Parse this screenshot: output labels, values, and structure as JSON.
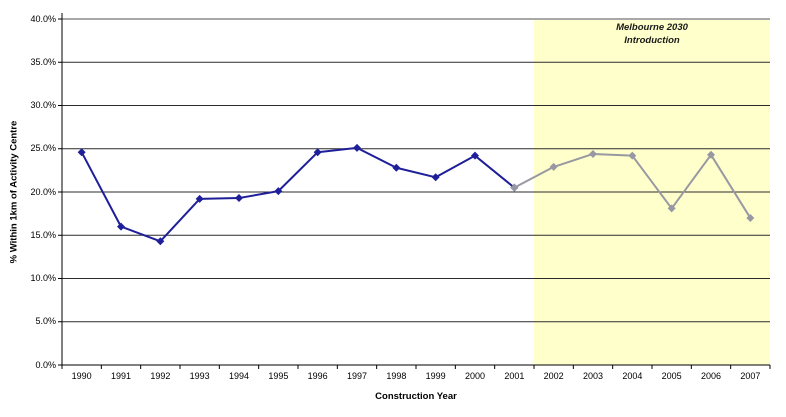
{
  "chart_data": {
    "type": "line",
    "xlabel": "Construction Year",
    "ylabel": "% Within 1km of Activity Centre",
    "x": [
      "1990",
      "1991",
      "1992",
      "1993",
      "1994",
      "1995",
      "1996",
      "1997",
      "1998",
      "1999",
      "2000",
      "2001",
      "2002",
      "2003",
      "2004",
      "2005",
      "2006",
      "2007"
    ],
    "ylim": [
      0,
      40
    ],
    "ytick_step": 5,
    "ytick_labels": [
      "0.0%",
      "5.0%",
      "10.0%",
      "15.0%",
      "20.0%",
      "25.0%",
      "30.0%",
      "35.0%",
      "40.0%"
    ],
    "grid": true,
    "legend": "none",
    "series": [
      {
        "name": "blue-series",
        "color": "#1F1F99",
        "values": [
          24.6,
          16.0,
          14.3,
          19.2,
          19.3,
          20.1,
          24.6,
          25.1,
          22.8,
          21.7,
          24.2,
          20.5,
          null,
          null,
          null,
          null,
          null,
          null
        ]
      },
      {
        "name": "grey-series",
        "color": "#9898A2",
        "values": [
          null,
          null,
          null,
          null,
          null,
          null,
          null,
          null,
          null,
          null,
          null,
          20.5,
          22.9,
          24.4,
          24.2,
          18.1,
          24.3,
          17.0
        ]
      }
    ],
    "band": {
      "start_year": "2002",
      "color": "#FFFFCC",
      "annotation_line1": "Melbourne 2030",
      "annotation_line2": "Introduction"
    }
  }
}
